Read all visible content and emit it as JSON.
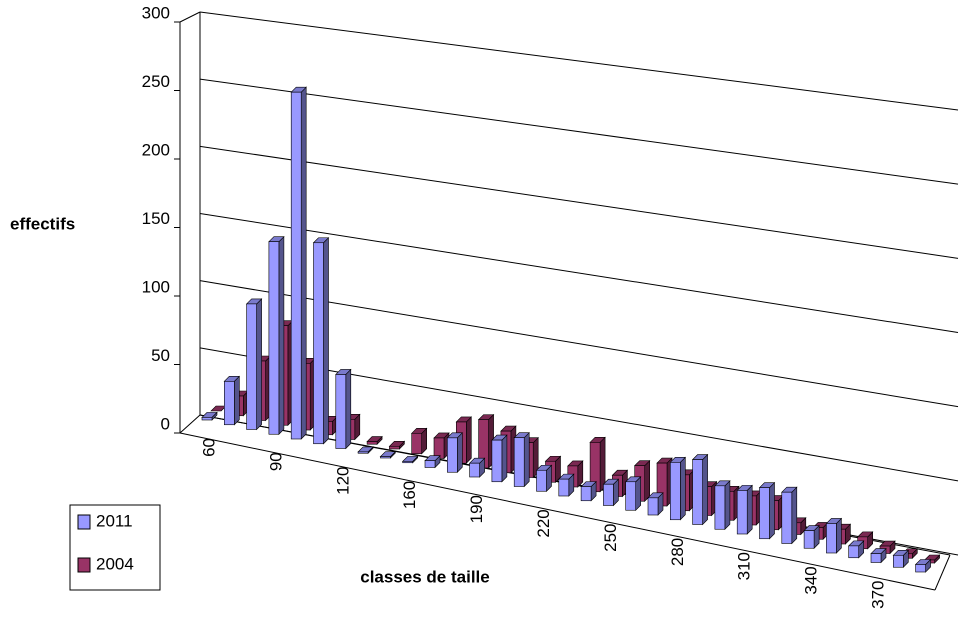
{
  "chart_data": {
    "type": "bar3d",
    "x_label": "classes de taille",
    "y_label": "effectifs",
    "categories": [
      "60",
      null,
      null,
      "90",
      null,
      null,
      "120",
      null,
      null,
      "160",
      null,
      null,
      "190",
      null,
      null,
      "220",
      null,
      null,
      "250",
      null,
      null,
      "280",
      null,
      null,
      "310",
      null,
      null,
      "340",
      null,
      null,
      "370",
      null,
      null
    ],
    "series": [
      {
        "name": "2011",
        "color": "#9999ff",
        "values": [
          2,
          33,
          95,
          145,
          260,
          150,
          55,
          1,
          1,
          1,
          5,
          25,
          10,
          30,
          35,
          15,
          12,
          10,
          15,
          20,
          12,
          40,
          45,
          30,
          30,
          35,
          35,
          12,
          20,
          8,
          6,
          8,
          5
        ]
      },
      {
        "name": "2004",
        "color": "#993366",
        "values": [
          0,
          15,
          45,
          75,
          50,
          10,
          15,
          2,
          2,
          15,
          15,
          30,
          35,
          30,
          25,
          15,
          15,
          35,
          15,
          25,
          30,
          25,
          20,
          20,
          20,
          20,
          8,
          8,
          10,
          8,
          5,
          3,
          2
        ]
      }
    ],
    "ylim": [
      0,
      300
    ],
    "yticks": [
      0,
      50,
      100,
      150,
      200,
      250,
      300
    ],
    "grid": true
  }
}
